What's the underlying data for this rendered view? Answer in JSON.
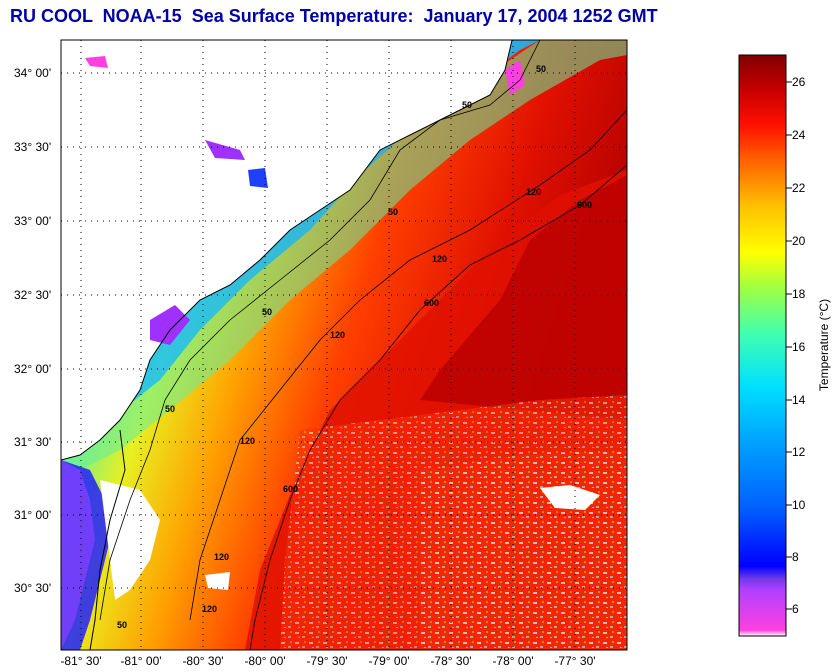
{
  "title": "RU COOL  NOAA-15  Sea Surface Temperature:  January 17, 2004 1252 GMT",
  "map": {
    "lat_labels": [
      "34° 00'",
      "33° 30'",
      "33° 00'",
      "32° 30'",
      "32° 00'",
      "31° 30'",
      "31° 00'",
      "30° 30'"
    ],
    "lon_labels": [
      "-81° 30'",
      "-81° 00'",
      "-80° 30'",
      "-80° 00'",
      "-79° 30'",
      "-79° 00'",
      "-78° 30'",
      "-78° 00'",
      "-77° 30'"
    ],
    "isobaths": [
      "50",
      "50",
      "50",
      "50",
      "50",
      "50",
      "120",
      "120",
      "120",
      "120",
      "120",
      "120",
      "600",
      "600",
      "600"
    ],
    "colors": {
      "land": "#ffffff",
      "coastline": "#000000",
      "grid": "#000000"
    }
  },
  "colorbar": {
    "title": "Temperature (°C)",
    "ticks": [
      "26",
      "24",
      "22",
      "20",
      "18",
      "16",
      "14",
      "12",
      "10",
      "8",
      "6"
    ],
    "range": [
      5,
      27
    ],
    "colors": [
      "#ff44dd",
      "#aa44ff",
      "#0000ff",
      "#0080ff",
      "#00e0ff",
      "#60ff90",
      "#e0ff20",
      "#ffc000",
      "#ff6000",
      "#ff0000",
      "#c00000",
      "#800000"
    ]
  }
}
